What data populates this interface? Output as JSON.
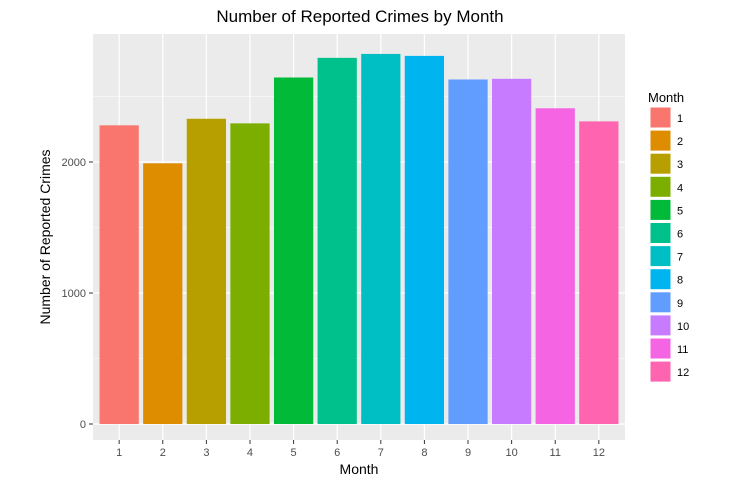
{
  "chart_data": {
    "type": "bar",
    "title": "Number of Reported Crimes by Month",
    "xlabel": "Month",
    "ylabel": "Number of Reported Crimes",
    "categories": [
      "1",
      "2",
      "3",
      "4",
      "5",
      "6",
      "7",
      "8",
      "9",
      "10",
      "11",
      "12"
    ],
    "values": [
      2280,
      1990,
      2330,
      2295,
      2645,
      2795,
      2825,
      2810,
      2630,
      2635,
      2410,
      2310
    ],
    "ylim": [
      0,
      3000
    ],
    "yticks": [
      0,
      1000,
      2000
    ],
    "ytick_labels": [
      "0",
      "1000",
      "2000"
    ],
    "grid": true,
    "legend": {
      "title": "Month",
      "position": "right",
      "entries": [
        "1",
        "2",
        "3",
        "4",
        "5",
        "6",
        "7",
        "8",
        "9",
        "10",
        "11",
        "12"
      ]
    },
    "colors": [
      "#F8766D",
      "#DE8C00",
      "#B79F00",
      "#7CAE00",
      "#00BA38",
      "#00C08B",
      "#00BFC4",
      "#00B4F0",
      "#619CFF",
      "#C77CFF",
      "#F564E3",
      "#FF64B0"
    ],
    "panel_background": "#EBEBEB",
    "grid_color": "#FFFFFF"
  }
}
